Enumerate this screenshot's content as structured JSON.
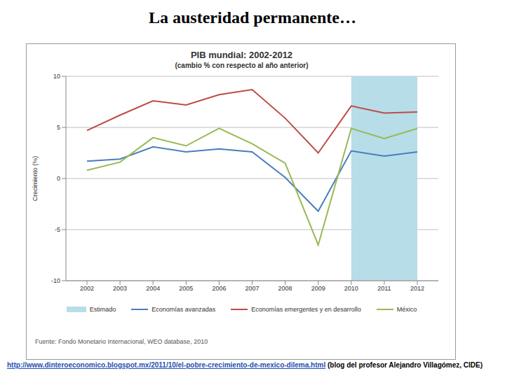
{
  "title": "La austeridad permanente…",
  "chart_data": {
    "type": "line",
    "title": "PIB mundial: 2002-2012",
    "subtitle": "(cambio % con respecto al año anterior)",
    "y_label": "Crecimiento (%)",
    "categories": [
      "2002",
      "2003",
      "2004",
      "2005",
      "2006",
      "2007",
      "2008",
      "2009",
      "2010",
      "2011",
      "2012"
    ],
    "series": [
      {
        "name": "Economías avanzadas",
        "color": "#4a7ebb",
        "values": [
          1.7,
          1.9,
          3.1,
          2.6,
          2.9,
          2.6,
          0.1,
          -3.2,
          2.7,
          2.2,
          2.6
        ]
      },
      {
        "name": "Economías emergentes y en desarrollo",
        "color": "#be4b48",
        "values": [
          4.7,
          6.2,
          7.6,
          7.2,
          8.2,
          8.7,
          5.9,
          2.5,
          7.1,
          6.4,
          6.5
        ]
      },
      {
        "name": "México",
        "color": "#98b954",
        "values": [
          0.8,
          1.6,
          4.0,
          3.2,
          4.9,
          3.4,
          1.5,
          -6.5,
          4.9,
          3.9,
          4.9
        ]
      }
    ],
    "ylim": [
      -10,
      10
    ],
    "yticks": [
      -10,
      -5,
      0,
      5,
      10
    ],
    "grid": true,
    "legend": "bottom",
    "shaded_region": {
      "label": "Estimado",
      "from": "2010",
      "to": "2012",
      "color": "#b7dde8"
    },
    "source": "Fuente: Fondo Monetario Internacional, WEO database, 2010"
  },
  "footer": {
    "link": "http://www.dinteroeconomico.blogspot.mx/2011/10/el-pobre-crecimiento-de-mexico-dilema.html",
    "note": "(blog del profesor Alejandro Villagómez, CIDE)"
  }
}
